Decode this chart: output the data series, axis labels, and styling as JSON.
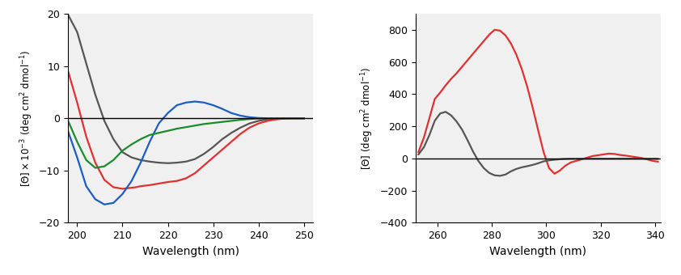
{
  "fig_width": 8.42,
  "fig_height": 3.4,
  "fig_dpi": 100,
  "bg_color": "#ffffff",
  "plot_bg": "#f0f0f0",
  "left": {
    "xlim": [
      198,
      252
    ],
    "ylim": [
      -20,
      20
    ],
    "xticks": [
      200,
      210,
      220,
      230,
      240,
      250
    ],
    "yticks": [
      -20,
      -10,
      0,
      10,
      20
    ],
    "xlabel": "Wavelength (nm)",
    "hline_y": 0,
    "curves": {
      "gray": {
        "color": "#555555",
        "x": [
          198,
          200,
          202,
          204,
          206,
          208,
          210,
          212,
          214,
          216,
          218,
          220,
          222,
          224,
          226,
          228,
          230,
          232,
          234,
          236,
          238,
          240,
          242,
          244,
          246,
          248,
          250
        ],
        "y": [
          19.8,
          16.5,
          10.5,
          4.5,
          -0.5,
          -4.0,
          -6.5,
          -7.5,
          -8.0,
          -8.3,
          -8.5,
          -8.6,
          -8.5,
          -8.3,
          -7.8,
          -6.8,
          -5.5,
          -4.0,
          -2.8,
          -1.8,
          -1.0,
          -0.5,
          -0.2,
          -0.05,
          0.0,
          0.0,
          0.0
        ]
      },
      "red": {
        "color": "#e03030",
        "x": [
          198,
          200,
          202,
          204,
          206,
          208,
          210,
          212,
          213,
          214,
          216,
          218,
          220,
          222,
          224,
          226,
          228,
          230,
          232,
          234,
          236,
          238,
          240,
          242,
          244,
          246,
          248,
          250
        ],
        "y": [
          9.0,
          3.0,
          -3.5,
          -8.5,
          -11.8,
          -13.2,
          -13.5,
          -13.3,
          -13.2,
          -13.0,
          -12.8,
          -12.5,
          -12.2,
          -12.0,
          -11.5,
          -10.5,
          -9.0,
          -7.5,
          -6.0,
          -4.5,
          -3.0,
          -1.8,
          -1.0,
          -0.5,
          -0.2,
          -0.05,
          0.0,
          0.0
        ]
      },
      "blue": {
        "color": "#1a5cc8",
        "x": [
          198,
          200,
          202,
          204,
          206,
          208,
          210,
          212,
          214,
          216,
          218,
          220,
          222,
          224,
          226,
          228,
          230,
          232,
          234,
          236,
          238,
          240,
          242,
          244,
          246,
          248,
          250
        ],
        "y": [
          -2.5,
          -7.5,
          -13.0,
          -15.5,
          -16.5,
          -16.2,
          -14.5,
          -12.0,
          -8.5,
          -4.5,
          -1.0,
          1.0,
          2.5,
          3.0,
          3.2,
          3.0,
          2.5,
          1.8,
          1.0,
          0.5,
          0.2,
          0.05,
          0.0,
          0.0,
          0.0,
          0.0,
          0.0
        ]
      },
      "green": {
        "color": "#1a8c2a",
        "x": [
          198,
          200,
          202,
          204,
          206,
          208,
          210,
          212,
          214,
          216,
          218,
          220,
          222,
          224,
          226,
          228,
          230,
          232,
          234,
          236,
          238,
          240,
          242,
          244,
          246,
          248,
          250
        ],
        "y": [
          -0.5,
          -4.5,
          -8.0,
          -9.5,
          -9.2,
          -8.0,
          -6.2,
          -5.0,
          -4.0,
          -3.2,
          -2.8,
          -2.4,
          -2.0,
          -1.7,
          -1.4,
          -1.1,
          -0.9,
          -0.7,
          -0.5,
          -0.3,
          -0.15,
          -0.05,
          0.0,
          0.0,
          0.0,
          0.0,
          0.0
        ]
      }
    }
  },
  "right": {
    "xlim": [
      252,
      342
    ],
    "ylim": [
      -400,
      900
    ],
    "xticks": [
      260,
      280,
      300,
      320,
      340
    ],
    "yticks": [
      -400,
      -200,
      0,
      200,
      400,
      600,
      800
    ],
    "xlabel": "Wavelength (nm)",
    "hline_y": 0,
    "curves": {
      "red": {
        "color": "#e03030",
        "x": [
          253,
          255,
          257,
          259,
          261,
          263,
          265,
          267,
          269,
          271,
          273,
          275,
          277,
          279,
          281,
          283,
          285,
          287,
          289,
          291,
          293,
          295,
          297,
          299,
          301,
          303,
          305,
          307,
          309,
          311,
          313,
          315,
          317,
          319,
          321,
          323,
          325,
          327,
          329,
          331,
          333,
          335,
          337,
          339,
          341
        ],
        "y": [
          40,
          130,
          250,
          370,
          410,
          455,
          495,
          530,
          570,
          610,
          650,
          690,
          730,
          770,
          800,
          795,
          765,
          715,
          645,
          555,
          445,
          315,
          175,
          40,
          -60,
          -95,
          -75,
          -45,
          -25,
          -15,
          -5,
          5,
          15,
          20,
          25,
          30,
          28,
          22,
          18,
          13,
          8,
          3,
          -5,
          -15,
          -20
        ]
      },
      "gray": {
        "color": "#555555",
        "x": [
          253,
          255,
          257,
          259,
          261,
          263,
          265,
          267,
          269,
          271,
          273,
          275,
          277,
          279,
          281,
          283,
          285,
          287,
          289,
          291,
          293,
          295,
          297,
          299,
          301,
          303,
          305,
          307,
          309,
          311,
          313,
          315,
          317,
          319,
          321,
          323,
          325,
          327,
          329,
          331,
          333,
          335,
          337,
          339,
          341
        ],
        "y": [
          25,
          70,
          145,
          235,
          280,
          290,
          268,
          230,
          180,
          115,
          45,
          -15,
          -60,
          -90,
          -105,
          -108,
          -100,
          -80,
          -65,
          -55,
          -48,
          -40,
          -30,
          -18,
          -12,
          -8,
          -5,
          -3,
          -2,
          -2,
          -2,
          -2,
          -2,
          -2,
          -2,
          -2,
          -2,
          -2,
          -2,
          -2,
          -2,
          -2,
          -2,
          -2,
          -2
        ]
      }
    }
  }
}
